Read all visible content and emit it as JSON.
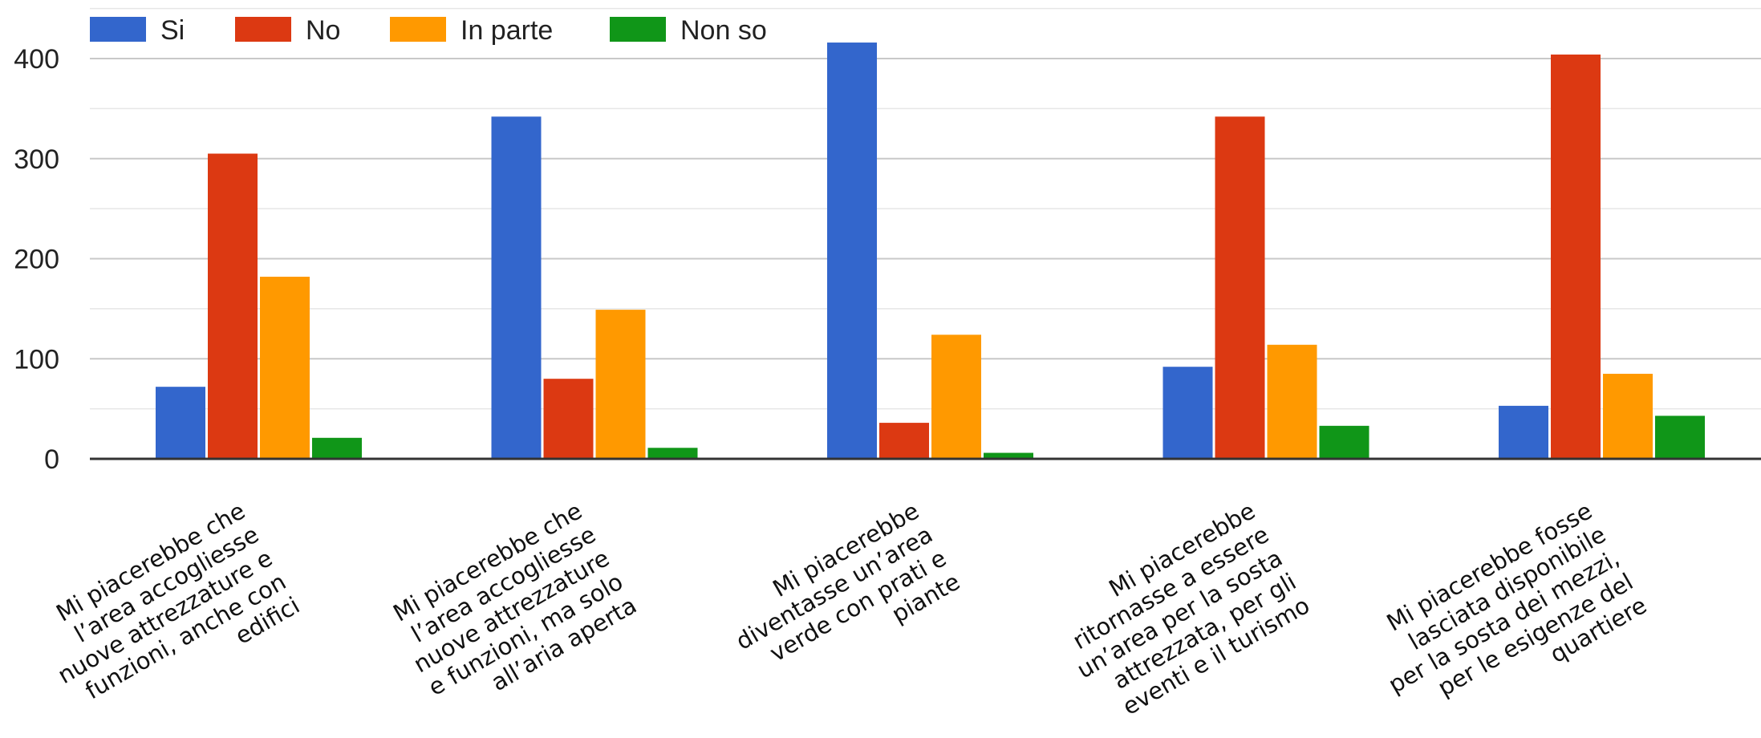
{
  "chart_data": {
    "type": "bar",
    "categories": [
      [
        "Mi piacerebbe che",
        "l’area accogliesse",
        "nuove attrezzature e",
        "funzioni, anche con",
        "edifici"
      ],
      [
        "Mi piacerebbe che",
        "l’area accogliesse",
        "nuove attrezzature",
        "e funzioni, ma solo",
        "all’aria aperta"
      ],
      [
        "Mi piacerebbe",
        "diventasse un’area",
        "verde con prati e",
        "piante"
      ],
      [
        "Mi piacerebbe",
        "ritornasse a essere",
        "un’area per la sosta",
        "attrezzata, per gli",
        "eventi e il turismo"
      ],
      [
        "Mi piacerebbe fosse",
        "lasciata disponibile",
        "per la sosta dei mezzi,",
        "per le esigenze del",
        "quartiere"
      ]
    ],
    "series": [
      {
        "name": "Si",
        "color": "#3366cc",
        "values": [
          72,
          342,
          416,
          92,
          53
        ]
      },
      {
        "name": "No",
        "color": "#dc3912",
        "values": [
          305,
          80,
          36,
          342,
          404
        ]
      },
      {
        "name": "In parte",
        "color": "#ff9900",
        "values": [
          182,
          149,
          124,
          114,
          85
        ]
      },
      {
        "name": "Non so",
        "color": "#109618",
        "values": [
          21,
          11,
          6,
          33,
          43
        ]
      }
    ],
    "yticks": [
      "0",
      "100",
      "200",
      "300",
      "400"
    ],
    "ylim": [
      0,
      440
    ],
    "legend_position": "top-left",
    "grid": true
  }
}
